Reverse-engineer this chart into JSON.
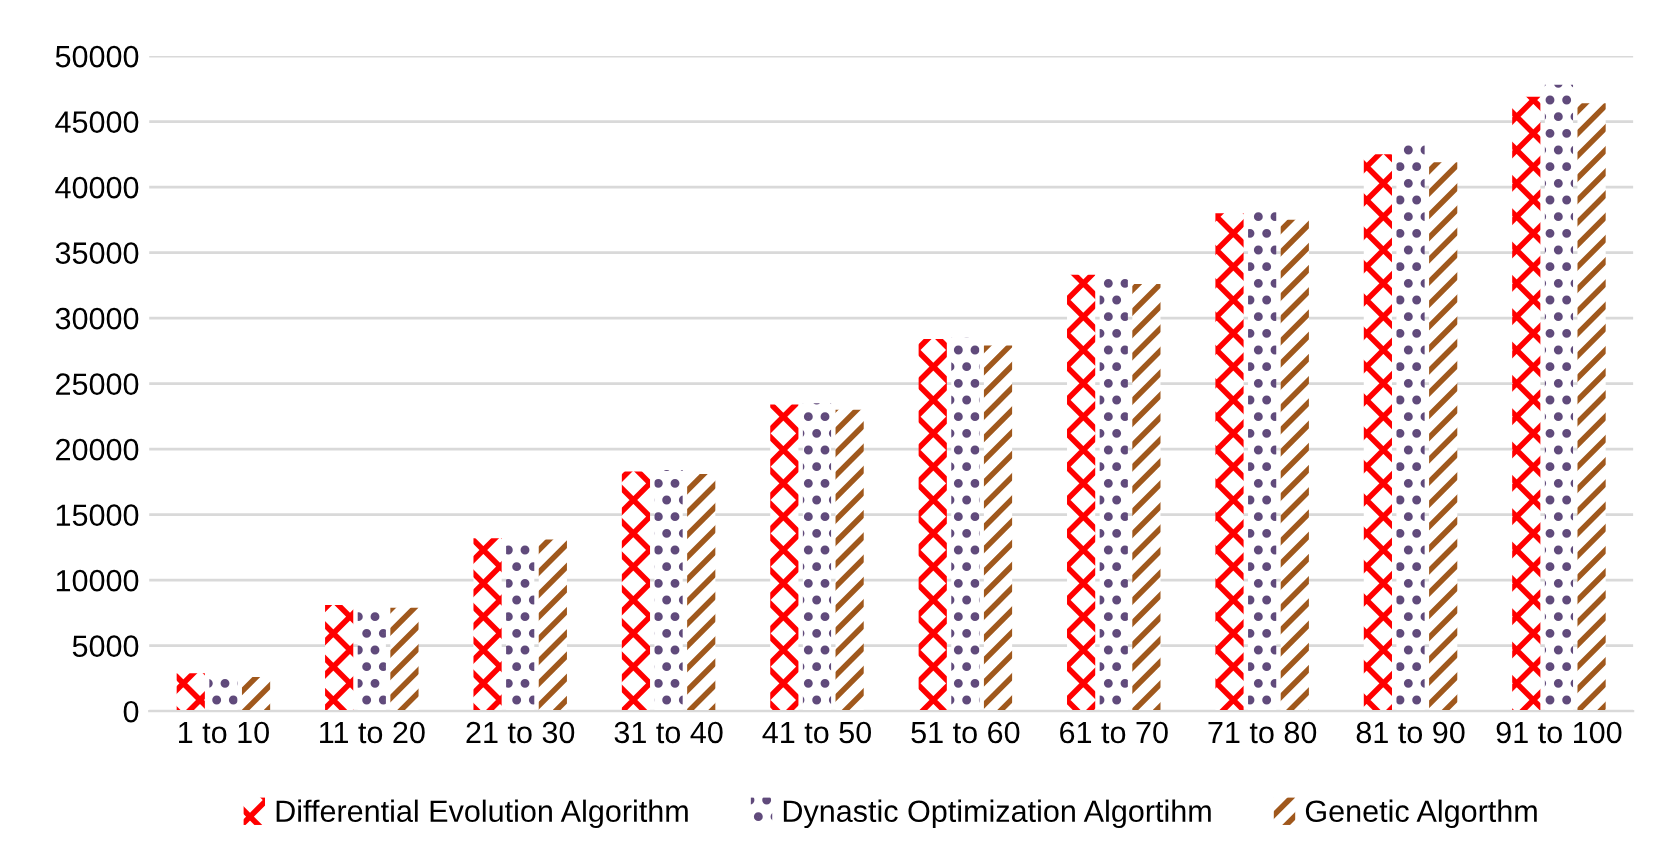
{
  "chart_data": {
    "type": "bar",
    "categories": [
      "1 to 10",
      "11 to 20",
      "21 to 30",
      "31 to 40",
      "41 to 50",
      "51 to 60",
      "61 to 70",
      "71 to 80",
      "81 to 90",
      "91 to 100"
    ],
    "series": [
      {
        "name": "Differential Evolution Algorithm",
        "color": "#ff0000",
        "values": [
          2900,
          8100,
          13200,
          18300,
          23400,
          28400,
          33300,
          38000,
          42500,
          46900
        ]
      },
      {
        "name": "Dynastic Optimization Algortihm",
        "color": "#604a7b",
        "values": [
          2800,
          8100,
          13200,
          18400,
          23500,
          28500,
          33500,
          38300,
          43300,
          47800
        ]
      },
      {
        "name": "Genetic Algorthm",
        "color": "#a0581c",
        "values": [
          2600,
          7900,
          13100,
          18100,
          23000,
          27900,
          32600,
          37500,
          41900,
          46400
        ]
      }
    ],
    "ylim": [
      0,
      50000
    ],
    "yticks": [
      0,
      5000,
      10000,
      15000,
      20000,
      25000,
      30000,
      35000,
      40000,
      45000,
      50000
    ],
    "grid": "y",
    "legend": "bottom"
  }
}
